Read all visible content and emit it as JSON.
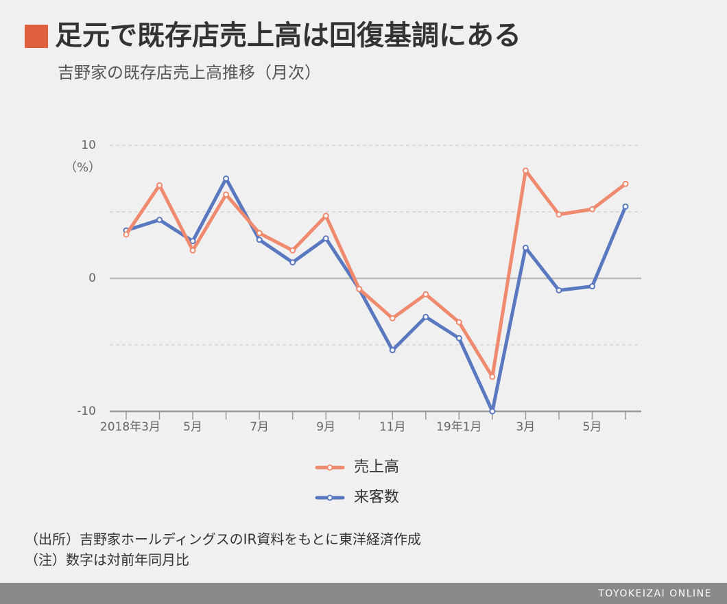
{
  "chart_data": {
    "type": "line",
    "title": "足元で既存店売上高は回復基調にある",
    "subtitle": "吉野家の既存店売上高推移（月次）",
    "y_unit": "（%）",
    "categories": [
      "2018年3月",
      null,
      "5月",
      null,
      "7月",
      null,
      "9月",
      null,
      "11月",
      null,
      "19年1月",
      null,
      "3月",
      null,
      "5月",
      null
    ],
    "series": [
      {
        "name": "売上高",
        "color": "#f08a6e",
        "values": [
          3.3,
          7.0,
          2.1,
          6.3,
          3.4,
          2.1,
          4.7,
          -0.8,
          -3.0,
          -1.2,
          -3.3,
          -7.4,
          8.1,
          4.8,
          5.2,
          7.1
        ]
      },
      {
        "name": "来客数",
        "color": "#5a78c0",
        "values": [
          3.6,
          4.4,
          2.8,
          7.5,
          2.9,
          1.2,
          3.0,
          -0.8,
          -5.4,
          -2.9,
          -4.5,
          -10.0,
          2.3,
          -0.9,
          -0.6,
          5.4
        ]
      }
    ],
    "ylim": [
      -10,
      10
    ],
    "yticks": [
      -10,
      0,
      10
    ],
    "minor_grid": [
      -5,
      5
    ],
    "grid": true,
    "notes": [
      "（出所）吉野家ホールディングスのIR資料をもとに東洋経済作成",
      "（注）数字は対前年同月比"
    ],
    "source": "TOYOKEIZAI ONLINE"
  }
}
